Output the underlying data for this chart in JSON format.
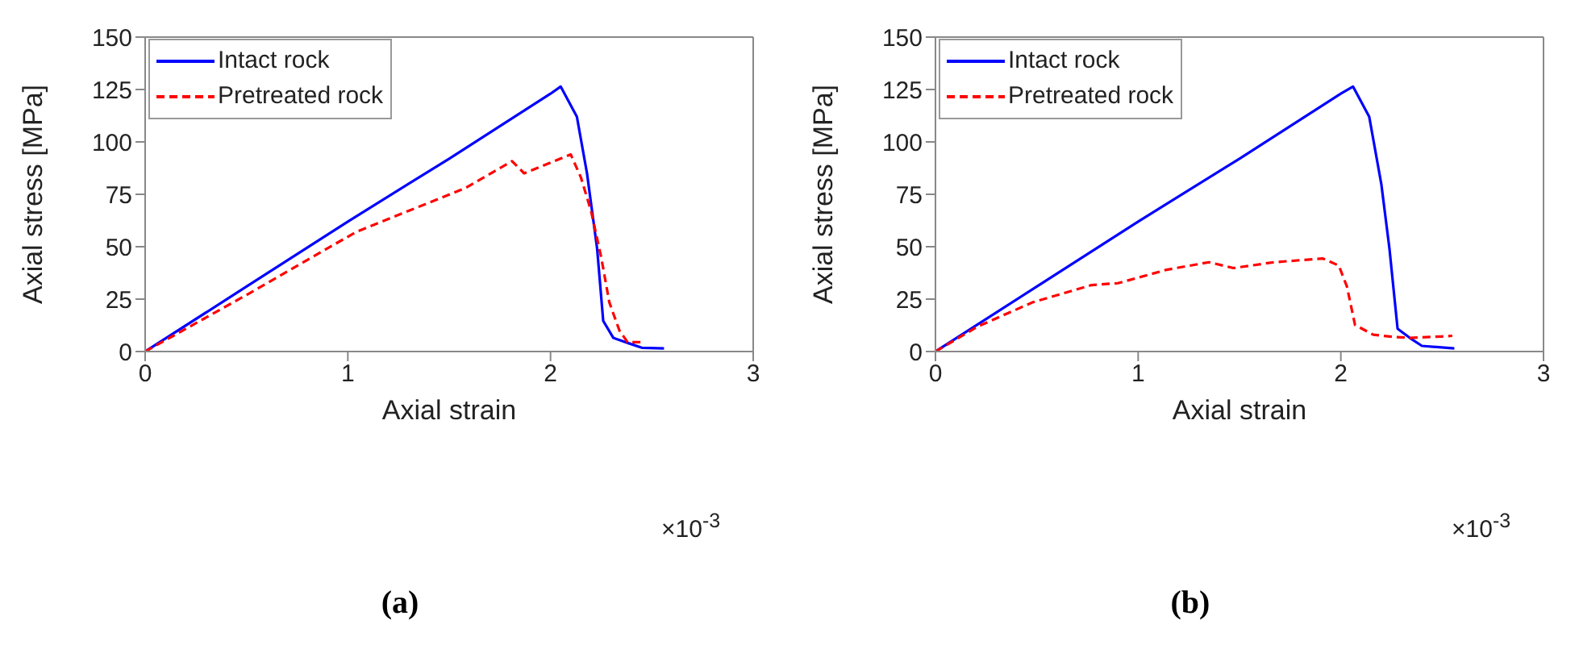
{
  "chart_data": [
    {
      "type": "line",
      "xlabel": "Axial strain",
      "ylabel": "Axial stress [MPa]",
      "xlim": [
        0,
        3
      ],
      "xticks": [
        0,
        1,
        2,
        3
      ],
      "ylim": [
        0,
        150
      ],
      "yticks": [
        0,
        25,
        50,
        75,
        100,
        125,
        150
      ],
      "legend": "top left",
      "annotations": [
        "×10$^{-3}$",
        "(a)"
      ],
      "series": [
        {
          "name": "Intact rock",
          "color": "#0000ff",
          "line_style": "solid",
          "x": [
            0,
            0.5,
            1,
            1.5,
            2.0,
            2.05,
            2.13,
            2.18,
            2.23,
            2.26,
            2.31,
            2.39,
            2.45,
            2.56
          ],
          "values": [
            0,
            31,
            62,
            92,
            123,
            126.4,
            112,
            85,
            49,
            14.6,
            6.5,
            3.8,
            1.8,
            1.5
          ]
        },
        {
          "name": "Pretreated rock",
          "color": "#ff0000",
          "line_style": "dashed",
          "x": [
            0,
            0.5,
            1.04,
            1.58,
            1.81,
            1.87,
            2.1,
            2.15,
            2.2,
            2.25,
            2.29,
            2.34,
            2.38,
            2.46
          ],
          "values": [
            0,
            27,
            57,
            78,
            90.8,
            85,
            94,
            83,
            67,
            45,
            23.5,
            10,
            4.5,
            4.5
          ]
        }
      ]
    },
    {
      "type": "line",
      "xlabel": "Axial strain",
      "ylabel": "Axial stress [MPa]",
      "xlim": [
        0,
        3
      ],
      "xticks": [
        0,
        1,
        2,
        3
      ],
      "ylim": [
        0,
        150
      ],
      "yticks": [
        0,
        25,
        50,
        75,
        100,
        125,
        150
      ],
      "legend": "top left",
      "annotations": [
        "×10$^{-3}$",
        "(b)"
      ],
      "series": [
        {
          "name": "Intact rock",
          "color": "#0000ff",
          "line_style": "solid",
          "x": [
            0,
            0.5,
            1,
            1.5,
            2.0,
            2.06,
            2.14,
            2.2,
            2.24,
            2.28,
            2.34,
            2.4,
            2.56
          ],
          "values": [
            0,
            31,
            62,
            92,
            123,
            126.4,
            112,
            79.7,
            49,
            10.9,
            6.5,
            2.7,
            1.5
          ]
        },
        {
          "name": "Pretreated rock",
          "color": "#ff0000",
          "line_style": "dashed",
          "x": [
            0,
            0.21,
            0.48,
            0.77,
            0.9,
            1.14,
            1.35,
            1.47,
            1.67,
            1.91,
            1.99,
            2.03,
            2.07,
            2.16,
            2.26,
            2.34,
            2.5,
            2.55
          ],
          "values": [
            0,
            12,
            23.5,
            31.7,
            32.6,
            39,
            42.6,
            39.8,
            42.6,
            44.4,
            41,
            31,
            12.7,
            8,
            7,
            6.5,
            7.2,
            7.5
          ]
        }
      ]
    }
  ]
}
